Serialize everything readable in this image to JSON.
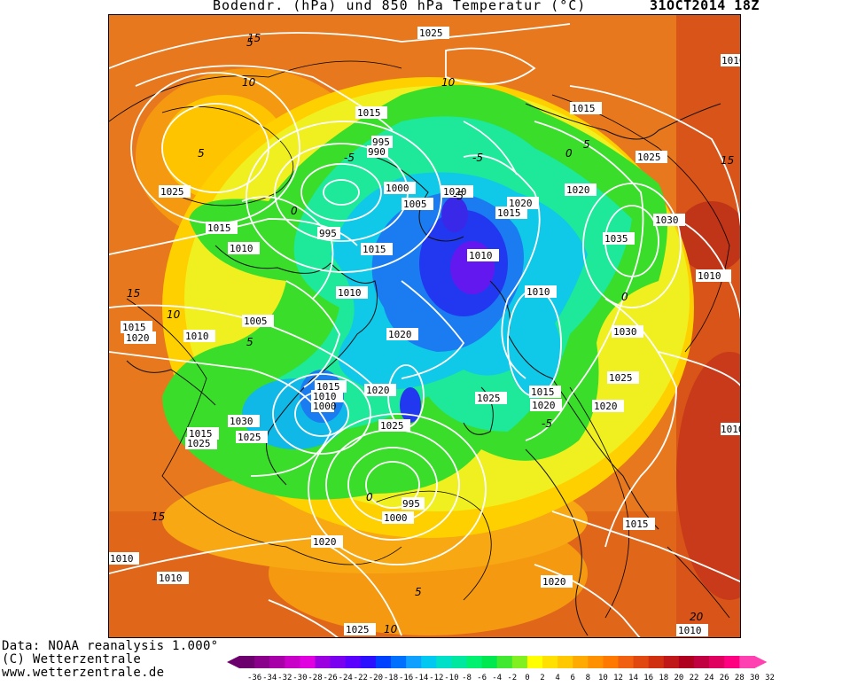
{
  "header": {
    "title": "Bodendr. (hPa) und 850 hPa Temperatur (°C)",
    "date": "31OCT2014 18Z"
  },
  "footer": {
    "line1": "Data: NOAA reanalysis 1.000°",
    "line2": "(C) Wetterzentrale",
    "line3": "www.wetterzentrale.de"
  },
  "legend": {
    "ticks": [
      "-36",
      "-34",
      "-32",
      "-30",
      "-28",
      "-26",
      "-24",
      "-22",
      "-20",
      "-18",
      "-16",
      "-14",
      "-12",
      "-10",
      "-8",
      "-6",
      "-4",
      "-2",
      "0",
      "2",
      "4",
      "6",
      "8",
      "10",
      "12",
      "14",
      "16",
      "18",
      "20",
      "22",
      "24",
      "26",
      "28",
      "30",
      "32"
    ],
    "colors": [
      "#6c006c",
      "#8a008a",
      "#a800a8",
      "#c800c8",
      "#e000e0",
      "#9a00e0",
      "#7a00f0",
      "#5a00ff",
      "#2a10ff",
      "#0040ff",
      "#0070ff",
      "#10a0ff",
      "#00c8f0",
      "#00e0c8",
      "#00e8a0",
      "#00f070",
      "#00e850",
      "#40e830",
      "#80f020",
      "#ffff00",
      "#ffe000",
      "#ffc800",
      "#ffaa00",
      "#ff9000",
      "#ff7800",
      "#f06010",
      "#e04810",
      "#d03010",
      "#c01818",
      "#b00020",
      "#c00040",
      "#e00060",
      "#ff0080",
      "#ff40b0"
    ]
  },
  "isobar_labels": [
    {
      "text": "1025"
    },
    {
      "text": "1015"
    },
    {
      "text": "995"
    },
    {
      "text": "990"
    },
    {
      "text": "1000"
    },
    {
      "text": "1005"
    },
    {
      "text": "1020"
    },
    {
      "text": "1025"
    },
    {
      "text": "1015"
    },
    {
      "text": "1010"
    },
    {
      "text": "995"
    },
    {
      "text": "1015"
    },
    {
      "text": "1010"
    },
    {
      "text": "1010"
    },
    {
      "text": "1005"
    },
    {
      "text": "1015"
    },
    {
      "text": "1020"
    },
    {
      "text": "1010"
    },
    {
      "text": "1020"
    },
    {
      "text": "1015"
    },
    {
      "text": "1010"
    },
    {
      "text": "1000"
    },
    {
      "text": "1030"
    },
    {
      "text": "1025"
    },
    {
      "text": "1025"
    },
    {
      "text": "1015"
    },
    {
      "text": "995"
    },
    {
      "text": "1000"
    },
    {
      "text": "1020"
    },
    {
      "text": "1010"
    },
    {
      "text": "1010"
    },
    {
      "text": "1025"
    },
    {
      "text": "1020"
    },
    {
      "text": "1015"
    },
    {
      "text": "1025"
    },
    {
      "text": "1020"
    },
    {
      "text": "1015"
    },
    {
      "text": "1020"
    },
    {
      "text": "1025"
    },
    {
      "text": "1035"
    },
    {
      "text": "1030"
    },
    {
      "text": "1010"
    },
    {
      "text": "1030"
    },
    {
      "text": "1025"
    },
    {
      "text": "1020"
    },
    {
      "text": "1015"
    },
    {
      "text": "1020"
    },
    {
      "text": "1010"
    },
    {
      "text": "1010"
    },
    {
      "text": "1020"
    },
    {
      "text": "1010"
    },
    {
      "text": "1015"
    },
    {
      "text": "1010"
    },
    {
      "text": "1025"
    }
  ],
  "temp_labels": [
    {
      "text": "15"
    },
    {
      "text": "10"
    },
    {
      "text": "5"
    },
    {
      "text": "0"
    },
    {
      "text": "-5"
    },
    {
      "text": "15"
    },
    {
      "text": "10"
    },
    {
      "text": "5"
    },
    {
      "text": "-5"
    },
    {
      "text": "0"
    },
    {
      "text": "5"
    },
    {
      "text": "0"
    },
    {
      "text": "15"
    },
    {
      "text": "10"
    },
    {
      "text": "-5"
    },
    {
      "text": "0"
    },
    {
      "text": "5"
    },
    {
      "text": "20"
    },
    {
      "text": "10"
    },
    {
      "text": "15"
    },
    {
      "text": "5"
    },
    {
      "text": "-5"
    }
  ]
}
